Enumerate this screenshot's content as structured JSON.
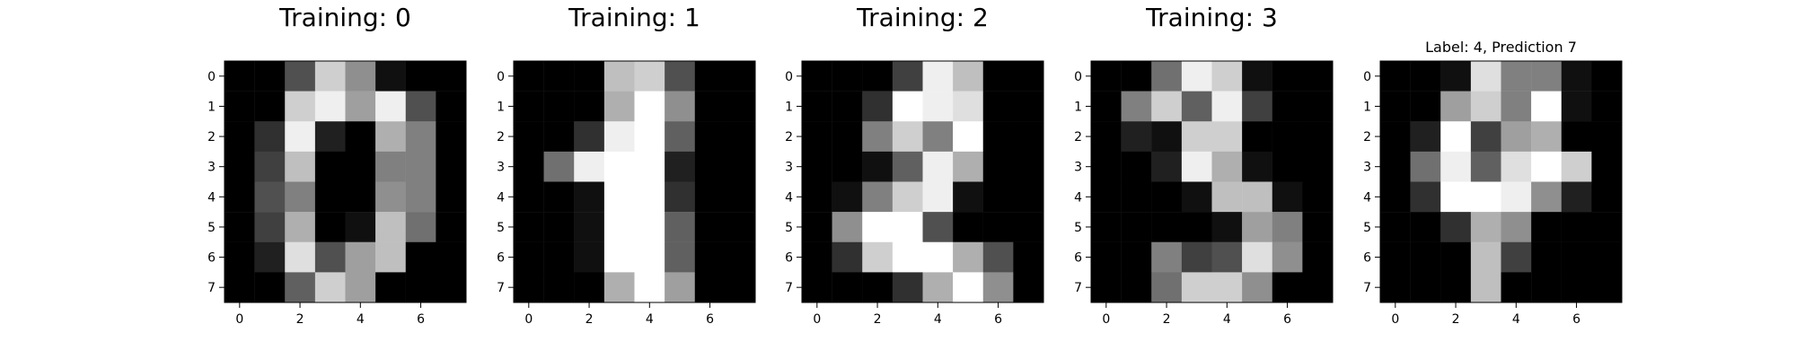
{
  "chart_data": [
    {
      "type": "heatmap",
      "title": "Training: 0",
      "colormap": "gray",
      "x_ticks": [
        0,
        2,
        4,
        6
      ],
      "y_ticks": [
        0,
        1,
        2,
        3,
        4,
        5,
        6,
        7
      ],
      "xlim": [
        -0.5,
        7.5
      ],
      "ylim": [
        7.5,
        -0.5
      ],
      "value_range": [
        0,
        16
      ],
      "values": [
        [
          0,
          0,
          5,
          13,
          9,
          1,
          0,
          0
        ],
        [
          0,
          0,
          13,
          15,
          10,
          15,
          5,
          0
        ],
        [
          0,
          3,
          15,
          2,
          0,
          11,
          8,
          0
        ],
        [
          0,
          4,
          12,
          0,
          0,
          8,
          8,
          0
        ],
        [
          0,
          5,
          8,
          0,
          0,
          9,
          8,
          0
        ],
        [
          0,
          4,
          11,
          0,
          1,
          12,
          7,
          0
        ],
        [
          0,
          2,
          14,
          5,
          10,
          12,
          0,
          0
        ],
        [
          0,
          0,
          6,
          13,
          10,
          0,
          0,
          0
        ]
      ]
    },
    {
      "type": "heatmap",
      "title": "Training: 1",
      "colormap": "gray",
      "x_ticks": [
        0,
        2,
        4,
        6
      ],
      "y_ticks": [
        0,
        1,
        2,
        3,
        4,
        5,
        6,
        7
      ],
      "xlim": [
        -0.5,
        7.5
      ],
      "ylim": [
        7.5,
        -0.5
      ],
      "value_range": [
        0,
        16
      ],
      "values": [
        [
          0,
          0,
          0,
          12,
          13,
          5,
          0,
          0
        ],
        [
          0,
          0,
          0,
          11,
          16,
          9,
          0,
          0
        ],
        [
          0,
          0,
          3,
          15,
          16,
          6,
          0,
          0
        ],
        [
          0,
          7,
          15,
          16,
          16,
          2,
          0,
          0
        ],
        [
          0,
          0,
          1,
          16,
          16,
          3,
          0,
          0
        ],
        [
          0,
          0,
          1,
          16,
          16,
          6,
          0,
          0
        ],
        [
          0,
          0,
          1,
          16,
          16,
          6,
          0,
          0
        ],
        [
          0,
          0,
          0,
          11,
          16,
          10,
          0,
          0
        ]
      ]
    },
    {
      "type": "heatmap",
      "title": "Training: 2",
      "colormap": "gray",
      "x_ticks": [
        0,
        2,
        4,
        6
      ],
      "y_ticks": [
        0,
        1,
        2,
        3,
        4,
        5,
        6,
        7
      ],
      "xlim": [
        -0.5,
        7.5
      ],
      "ylim": [
        7.5,
        -0.5
      ],
      "value_range": [
        0,
        16
      ],
      "values": [
        [
          0,
          0,
          0,
          4,
          15,
          12,
          0,
          0
        ],
        [
          0,
          0,
          3,
          16,
          15,
          14,
          0,
          0
        ],
        [
          0,
          0,
          8,
          13,
          8,
          16,
          0,
          0
        ],
        [
          0,
          0,
          1,
          6,
          15,
          11,
          0,
          0
        ],
        [
          0,
          1,
          8,
          13,
          15,
          1,
          0,
          0
        ],
        [
          0,
          9,
          16,
          16,
          5,
          0,
          0,
          0
        ],
        [
          0,
          3,
          13,
          16,
          16,
          11,
          5,
          0
        ],
        [
          0,
          0,
          0,
          3,
          11,
          16,
          9,
          0
        ]
      ]
    },
    {
      "type": "heatmap",
      "title": "Training: 3",
      "colormap": "gray",
      "x_ticks": [
        0,
        2,
        4,
        6
      ],
      "y_ticks": [
        0,
        1,
        2,
        3,
        4,
        5,
        6,
        7
      ],
      "xlim": [
        -0.5,
        7.5
      ],
      "ylim": [
        7.5,
        -0.5
      ],
      "value_range": [
        0,
        16
      ],
      "values": [
        [
          0,
          0,
          7,
          15,
          13,
          1,
          0,
          0
        ],
        [
          0,
          8,
          13,
          6,
          15,
          4,
          0,
          0
        ],
        [
          0,
          2,
          1,
          13,
          13,
          0,
          0,
          0
        ],
        [
          0,
          0,
          2,
          15,
          11,
          1,
          0,
          0
        ],
        [
          0,
          0,
          0,
          1,
          12,
          12,
          1,
          0
        ],
        [
          0,
          0,
          0,
          0,
          1,
          10,
          8,
          0
        ],
        [
          0,
          0,
          8,
          4,
          5,
          14,
          9,
          0
        ],
        [
          0,
          0,
          7,
          13,
          13,
          9,
          0,
          0
        ]
      ]
    },
    {
      "type": "heatmap",
      "title": "Label: 4, Prediction 7",
      "colormap": "gray",
      "x_ticks": [
        0,
        2,
        4,
        6
      ],
      "y_ticks": [
        0,
        1,
        2,
        3,
        4,
        5,
        6,
        7
      ],
      "xlim": [
        -0.5,
        7.5
      ],
      "ylim": [
        7.5,
        -0.5
      ],
      "value_range": [
        0,
        16
      ],
      "values": [
        [
          0,
          0,
          1,
          14,
          8,
          8,
          1,
          0
        ],
        [
          0,
          0,
          10,
          13,
          8,
          16,
          1,
          0
        ],
        [
          0,
          2,
          16,
          4,
          10,
          11,
          0,
          0
        ],
        [
          0,
          7,
          15,
          6,
          14,
          16,
          13,
          0
        ],
        [
          0,
          3,
          16,
          16,
          15,
          9,
          2,
          0
        ],
        [
          0,
          0,
          3,
          11,
          9,
          0,
          0,
          0
        ],
        [
          0,
          0,
          0,
          12,
          4,
          0,
          0,
          0
        ],
        [
          0,
          0,
          0,
          12,
          0,
          0,
          0,
          0
        ]
      ]
    }
  ]
}
